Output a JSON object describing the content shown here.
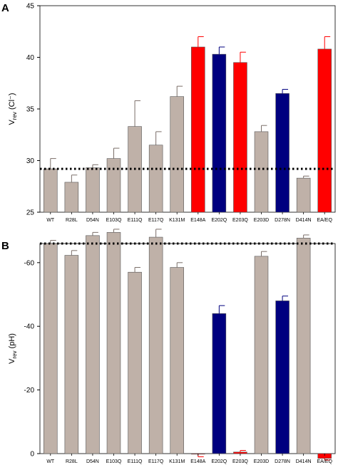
{
  "chart_data": [
    {
      "type": "bar",
      "panel_label": "A",
      "ylabel": "V",
      "ylabel_sub": "rev",
      "ylabel_suffix": " (Cl⁻)",
      "ylim": [
        25,
        45
      ],
      "yticks": [
        25,
        30,
        35,
        40,
        45
      ],
      "categories": [
        "WT",
        "R28L",
        "D54N",
        "E103Q",
        "E111Q",
        "E117Q",
        "K131M",
        "E148A",
        "E202Q",
        "E203Q",
        "E203D",
        "D278N",
        "D414N",
        "EA/EQ"
      ],
      "values": [
        29.2,
        27.9,
        29.3,
        30.2,
        33.3,
        31.5,
        36.2,
        41.0,
        40.3,
        39.5,
        32.8,
        36.5,
        28.3,
        40.8
      ],
      "errors": [
        1.0,
        0.7,
        0.3,
        1.0,
        2.5,
        1.3,
        1.0,
        1.0,
        0.7,
        1.0,
        0.6,
        0.4,
        0.2,
        1.2
      ],
      "colors": [
        "#bfb1a8",
        "#bfb1a8",
        "#bfb1a8",
        "#bfb1a8",
        "#bfb1a8",
        "#bfb1a8",
        "#bfb1a8",
        "#ff0000",
        "#00007f",
        "#ff0000",
        "#bfb1a8",
        "#00007f",
        "#bfb1a8",
        "#ff0000"
      ],
      "reference_line": 29.2,
      "grid": false
    },
    {
      "type": "bar",
      "panel_label": "B",
      "ylabel": "V",
      "ylabel_sub": "rev",
      "ylabel_suffix": " (pH)",
      "ylim": [
        0,
        -66
      ],
      "yticks": [
        0,
        -20,
        -40,
        -60
      ],
      "ytick_labels": [
        "0",
        "-20",
        "-40",
        "-60"
      ],
      "categories": [
        "WT",
        "R28L",
        "D54N",
        "E103Q",
        "E111Q",
        "E117Q",
        "K131M",
        "E148A",
        "E202Q",
        "E203Q",
        "E203D",
        "D278N",
        "D414N",
        "EA/EQ"
      ],
      "values": [
        -66.0,
        -62.3,
        -68.5,
        -69.5,
        -57.0,
        -68.0,
        -58.5,
        0.0,
        -44.0,
        -0.5,
        -62.0,
        -48.0,
        -67.7,
        1.5
      ],
      "errors": [
        1.0,
        1.5,
        1.0,
        1.0,
        1.5,
        2.5,
        1.5,
        1.0,
        2.5,
        0.5,
        1.5,
        1.5,
        1.0,
        0.5
      ],
      "colors": [
        "#bfb1a8",
        "#bfb1a8",
        "#bfb1a8",
        "#bfb1a8",
        "#bfb1a8",
        "#bfb1a8",
        "#bfb1a8",
        "#ff0000",
        "#00007f",
        "#ff0000",
        "#bfb1a8",
        "#00007f",
        "#bfb1a8",
        "#ff0000"
      ],
      "reference_line": -66.0,
      "grid": false
    }
  ]
}
